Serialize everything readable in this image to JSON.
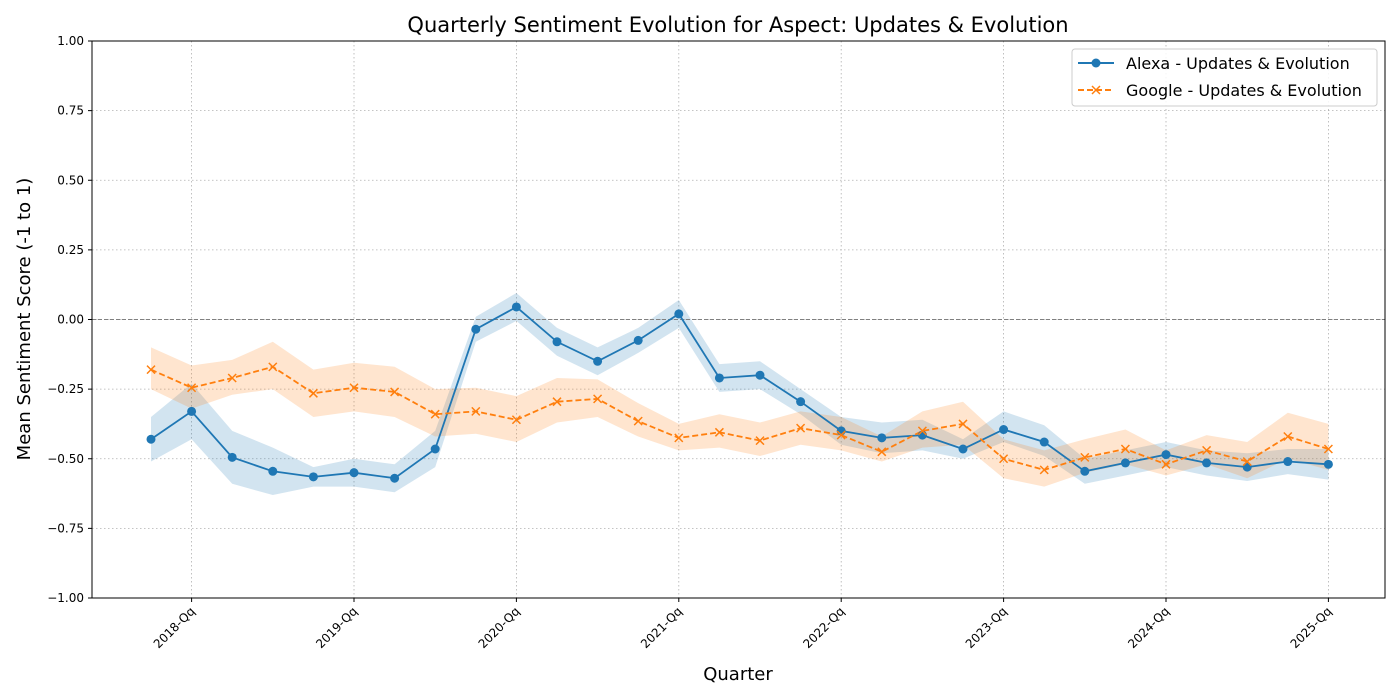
{
  "chart_data": {
    "type": "line",
    "title": "Quarterly Sentiment Evolution for Aspect: Updates & Evolution",
    "xlabel": "Quarter",
    "ylabel": "Mean Sentiment Score (-1 to 1)",
    "ylim": [
      -1.0,
      1.0
    ],
    "yticks": [
      -1.0,
      -0.75,
      -0.5,
      -0.25,
      0.0,
      0.25,
      0.5,
      0.75,
      1.0
    ],
    "ytick_labels": [
      "−1.00",
      "−0.75",
      "−0.50",
      "−0.25",
      "0.00",
      "0.25",
      "0.50",
      "0.75",
      "1.00"
    ],
    "xtick_labels": [
      "2018-Qq",
      "2019-Qq",
      "2020-Qq",
      "2021-Qq",
      "2022-Qq",
      "2023-Qq",
      "2024-Qq",
      "2025-Qq"
    ],
    "xtick_indices": [
      1,
      5,
      9,
      13,
      17,
      21,
      25,
      29
    ],
    "n_points": 30,
    "reference_line_y": 0.0,
    "grid": true,
    "legend_position": "top-right",
    "series": [
      {
        "name": "Alexa - Updates & Evolution",
        "color": "#1f77b4",
        "marker": "circle",
        "linestyle": "solid",
        "values": [
          -0.43,
          -0.33,
          -0.495,
          -0.545,
          -0.565,
          -0.55,
          -0.57,
          -0.465,
          -0.035,
          0.045,
          -0.08,
          -0.15,
          -0.075,
          0.02,
          -0.21,
          -0.2,
          -0.295,
          -0.4,
          -0.425,
          -0.415,
          -0.465,
          -0.395,
          -0.44,
          -0.545,
          -0.515,
          -0.485,
          -0.515,
          -0.53,
          -0.51,
          -0.52
        ],
        "lower": [
          -0.51,
          -0.43,
          -0.59,
          -0.63,
          -0.6,
          -0.6,
          -0.62,
          -0.53,
          -0.08,
          -0.005,
          -0.13,
          -0.2,
          -0.12,
          -0.03,
          -0.26,
          -0.25,
          -0.34,
          -0.45,
          -0.48,
          -0.47,
          -0.5,
          -0.44,
          -0.49,
          -0.59,
          -0.56,
          -0.53,
          -0.56,
          -0.58,
          -0.555,
          -0.575
        ],
        "upper": [
          -0.35,
          -0.23,
          -0.4,
          -0.46,
          -0.53,
          -0.5,
          -0.52,
          -0.4,
          0.01,
          0.095,
          -0.03,
          -0.1,
          -0.03,
          0.07,
          -0.16,
          -0.15,
          -0.25,
          -0.35,
          -0.37,
          -0.36,
          -0.43,
          -0.33,
          -0.38,
          -0.5,
          -0.47,
          -0.44,
          -0.47,
          -0.48,
          -0.465,
          -0.465
        ]
      },
      {
        "name": "Google - Updates & Evolution",
        "color": "#ff7f0e",
        "marker": "x",
        "linestyle": "dashed",
        "values": [
          -0.18,
          -0.245,
          -0.21,
          -0.17,
          -0.265,
          -0.245,
          -0.26,
          -0.34,
          -0.33,
          -0.36,
          -0.295,
          -0.285,
          -0.365,
          -0.425,
          -0.405,
          -0.435,
          -0.39,
          -0.415,
          -0.475,
          -0.4,
          -0.375,
          -0.5,
          -0.54,
          -0.495,
          -0.465,
          -0.52,
          -0.47,
          -0.51,
          -0.42,
          -0.465
        ],
        "lower": [
          -0.25,
          -0.32,
          -0.27,
          -0.25,
          -0.35,
          -0.33,
          -0.35,
          -0.42,
          -0.41,
          -0.44,
          -0.37,
          -0.35,
          -0.42,
          -0.47,
          -0.46,
          -0.49,
          -0.45,
          -0.47,
          -0.51,
          -0.46,
          -0.45,
          -0.57,
          -0.6,
          -0.55,
          -0.52,
          -0.56,
          -0.52,
          -0.57,
          -0.5,
          -0.54
        ],
        "upper": [
          -0.1,
          -0.165,
          -0.145,
          -0.08,
          -0.18,
          -0.155,
          -0.17,
          -0.25,
          -0.245,
          -0.275,
          -0.21,
          -0.215,
          -0.3,
          -0.375,
          -0.34,
          -0.37,
          -0.33,
          -0.35,
          -0.42,
          -0.33,
          -0.295,
          -0.43,
          -0.47,
          -0.43,
          -0.395,
          -0.47,
          -0.415,
          -0.44,
          -0.335,
          -0.375
        ]
      }
    ]
  }
}
